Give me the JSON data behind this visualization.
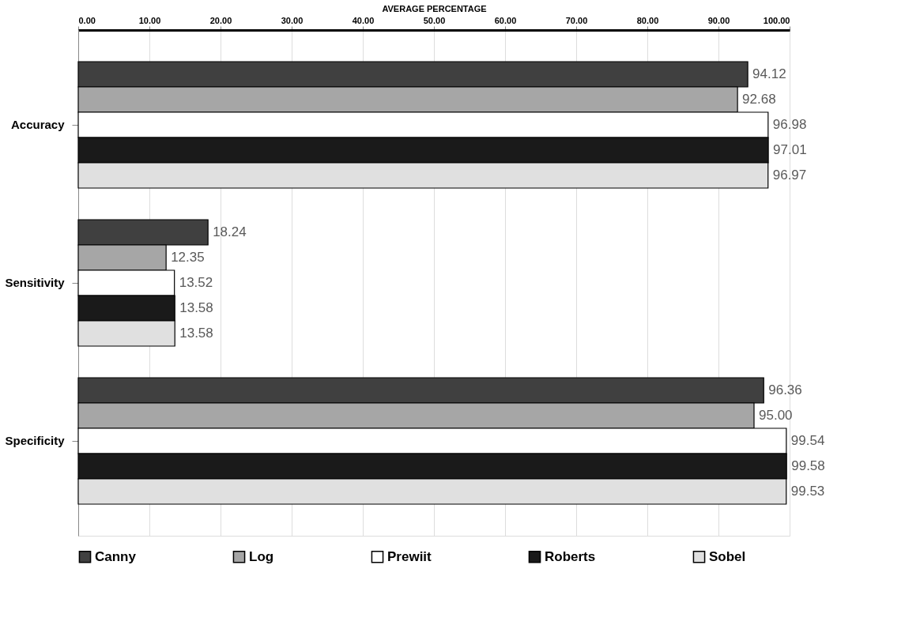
{
  "chart_data": {
    "type": "bar",
    "orientation": "horizontal",
    "xlabel": "AVERAGE PERCENTAGE",
    "categories": [
      "Accuracy",
      "Sensitivity",
      "Specificity"
    ],
    "series": [
      {
        "name": "Canny",
        "color": "#404040",
        "values": [
          94.12,
          18.24,
          96.36
        ],
        "value_labels": [
          "94.12",
          "18.24",
          "96.36"
        ]
      },
      {
        "name": "Log",
        "color": "#a6a6a6",
        "values": [
          92.68,
          12.35,
          95.0
        ],
        "value_labels": [
          "92.68",
          "12.35",
          "95.00"
        ]
      },
      {
        "name": "Prewiit",
        "color": "#ffffff",
        "values": [
          96.98,
          13.52,
          99.54
        ],
        "value_labels": [
          "96.98",
          "13.52",
          "99.54"
        ]
      },
      {
        "name": "Roberts",
        "color": "#1a1a1a",
        "values": [
          97.01,
          13.58,
          99.58
        ],
        "value_labels": [
          "97.01",
          "13.58",
          "99.58"
        ]
      },
      {
        "name": "Sobel",
        "color": "#e0e0e0",
        "values": [
          96.97,
          13.58,
          99.53
        ],
        "value_labels": [
          "96.97",
          "13.58",
          "99.53"
        ]
      }
    ],
    "xlim": [
      0,
      100
    ],
    "xticks": [
      {
        "value": 0,
        "label": "0.00"
      },
      {
        "value": 10,
        "label": "10.00"
      },
      {
        "value": 20,
        "label": "20.00"
      },
      {
        "value": 30,
        "label": "30.00"
      },
      {
        "value": 40,
        "label": "40.00"
      },
      {
        "value": 50,
        "label": "50.00"
      },
      {
        "value": 60,
        "label": "60.00"
      },
      {
        "value": 70,
        "label": "70.00"
      },
      {
        "value": 80,
        "label": "80.00"
      },
      {
        "value": 90,
        "label": "90.00"
      },
      {
        "value": 100,
        "label": "100.00"
      }
    ],
    "grid": "x",
    "legend": "bottom"
  }
}
